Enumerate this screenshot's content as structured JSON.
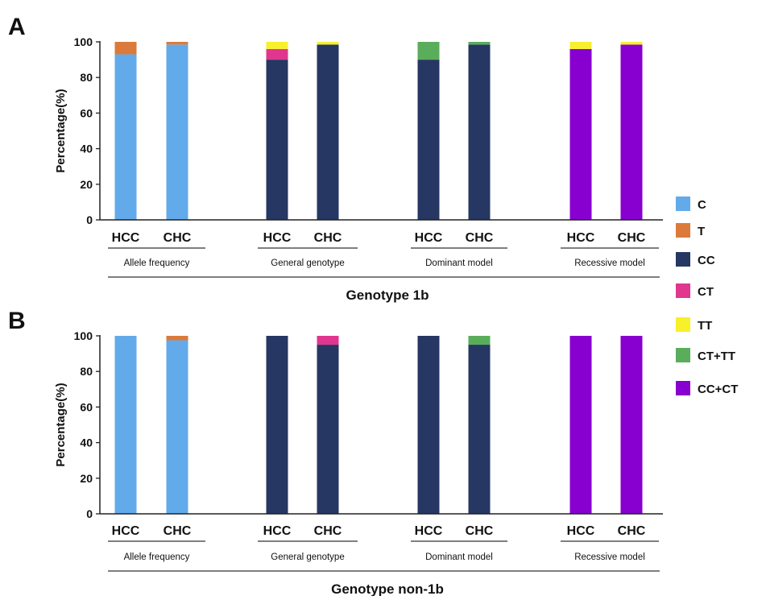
{
  "colors": {
    "C": "#63aaea",
    "T": "#db7a3a",
    "CC": "#253762",
    "CT": "#e0368e",
    "TT": "#f8f02a",
    "CT+TT": "#5aad5a",
    "CC+CT": "#8800cf"
  },
  "legend": [
    "C",
    "T",
    "CC",
    "CT",
    "TT",
    "CT+TT",
    "CC+CT"
  ],
  "chart_data": [
    {
      "type": "bar",
      "stacked": true,
      "panel_label": "A",
      "title": "Genotype 1b",
      "ylabel": "Percentage(%)",
      "ylim": [
        0,
        100
      ],
      "yticks": [
        "0",
        "20",
        "40",
        "60",
        "80",
        "100"
      ],
      "groups": [
        {
          "label": "Allele frequency",
          "bars": [
            {
              "category": "HCC",
              "stack": [
                {
                  "key": "C",
                  "value": 93
                },
                {
                  "key": "T",
                  "value": 7
                }
              ]
            },
            {
              "category": "CHC",
              "stack": [
                {
                  "key": "C",
                  "value": 98.5
                },
                {
                  "key": "T",
                  "value": 1.5
                }
              ]
            }
          ]
        },
        {
          "label": "General genotype",
          "bars": [
            {
              "category": "HCC",
              "stack": [
                {
                  "key": "CC",
                  "value": 90
                },
                {
                  "key": "CT",
                  "value": 6
                },
                {
                  "key": "TT",
                  "value": 4
                }
              ]
            },
            {
              "category": "CHC",
              "stack": [
                {
                  "key": "CC",
                  "value": 98.5
                },
                {
                  "key": "TT",
                  "value": 1.5
                }
              ]
            }
          ]
        },
        {
          "label": "Dominant model",
          "bars": [
            {
              "category": "HCC",
              "stack": [
                {
                  "key": "CC",
                  "value": 90
                },
                {
                  "key": "CT+TT",
                  "value": 10
                }
              ]
            },
            {
              "category": "CHC",
              "stack": [
                {
                  "key": "CC",
                  "value": 98.5
                },
                {
                  "key": "CT+TT",
                  "value": 1.5
                }
              ]
            }
          ]
        },
        {
          "label": "Recessive model",
          "bars": [
            {
              "category": "HCC",
              "stack": [
                {
                  "key": "CC+CT",
                  "value": 96
                },
                {
                  "key": "TT",
                  "value": 4
                }
              ]
            },
            {
              "category": "CHC",
              "stack": [
                {
                  "key": "CC+CT",
                  "value": 98.5
                },
                {
                  "key": "TT",
                  "value": 1.5
                }
              ]
            }
          ]
        }
      ]
    },
    {
      "type": "bar",
      "stacked": true,
      "panel_label": "B",
      "title": "Genotype non-1b",
      "ylabel": "Percentage(%)",
      "ylim": [
        0,
        100
      ],
      "yticks": [
        "0",
        "20",
        "40",
        "60",
        "80",
        "100"
      ],
      "groups": [
        {
          "label": "Allele frequency",
          "bars": [
            {
              "category": "HCC",
              "stack": [
                {
                  "key": "C",
                  "value": 100
                }
              ]
            },
            {
              "category": "CHC",
              "stack": [
                {
                  "key": "C",
                  "value": 97.5
                },
                {
                  "key": "T",
                  "value": 2.5
                }
              ]
            }
          ]
        },
        {
          "label": "General genotype",
          "bars": [
            {
              "category": "HCC",
              "stack": [
                {
                  "key": "CC",
                  "value": 100
                }
              ]
            },
            {
              "category": "CHC",
              "stack": [
                {
                  "key": "CC",
                  "value": 95
                },
                {
                  "key": "CT",
                  "value": 5
                }
              ]
            }
          ]
        },
        {
          "label": "Dominant model",
          "bars": [
            {
              "category": "HCC",
              "stack": [
                {
                  "key": "CC",
                  "value": 100
                }
              ]
            },
            {
              "category": "CHC",
              "stack": [
                {
                  "key": "CC",
                  "value": 95
                },
                {
                  "key": "CT+TT",
                  "value": 5
                }
              ]
            }
          ]
        },
        {
          "label": "Recessive model",
          "bars": [
            {
              "category": "HCC",
              "stack": [
                {
                  "key": "CC+CT",
                  "value": 100
                }
              ]
            },
            {
              "category": "CHC",
              "stack": [
                {
                  "key": "CC+CT",
                  "value": 100
                }
              ]
            }
          ]
        }
      ]
    }
  ]
}
